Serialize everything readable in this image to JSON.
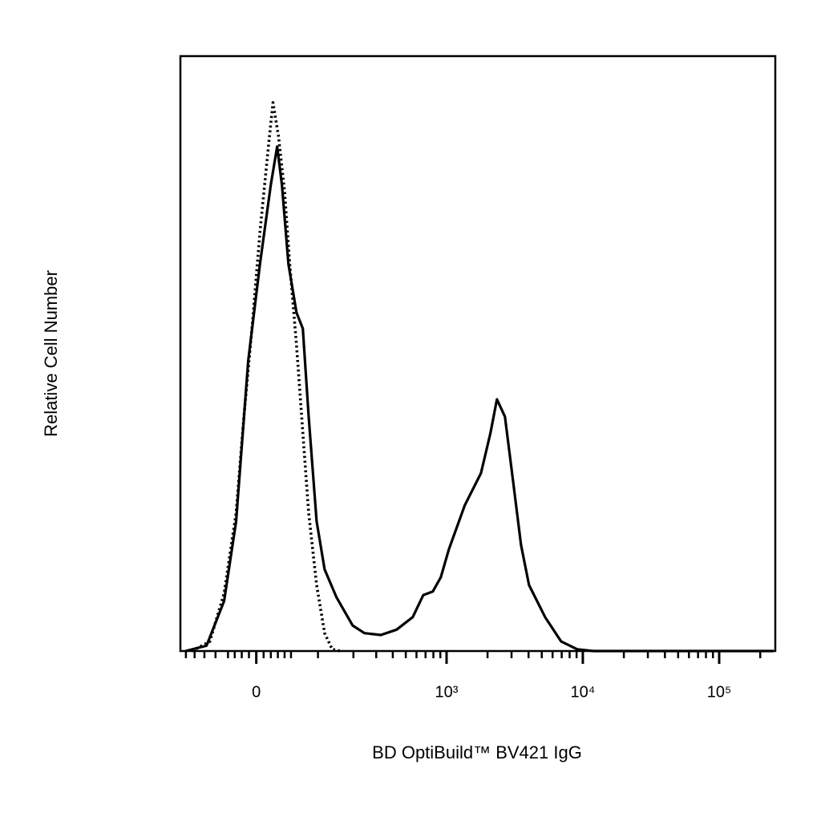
{
  "chart_data": {
    "type": "line",
    "xlabel": "BD OptiBuild™ BV421 IgG",
    "ylabel": "Relative Cell Number",
    "xscale": "biexponential",
    "xlim": [
      -134,
      258000
    ],
    "ylim": [
      0,
      100
    ],
    "xticks": [
      0,
      {
        "value": 1000,
        "label": "10³"
      },
      {
        "value": 10000,
        "label": "10⁴"
      },
      {
        "value": 100000,
        "label": "10⁵"
      }
    ],
    "xminorticks": [
      -120,
      -100,
      -80,
      -60,
      -40,
      -30,
      -20,
      -10,
      10,
      20,
      30,
      40,
      50,
      100,
      200,
      300,
      400,
      500,
      600,
      700,
      800,
      900,
      2000,
      3000,
      4000,
      5000,
      6000,
      7000,
      8000,
      9000,
      20000,
      30000,
      40000,
      50000,
      60000,
      70000,
      80000,
      90000,
      200000
    ],
    "series": [
      {
        "color": "#000000",
        "style": "solid",
        "x": [
          -121,
          -76,
          -46,
          -28,
          -11,
          5,
          20,
          29,
          36,
          46,
          59,
          70,
          81,
          97,
          115,
          146,
          197,
          244,
          325,
          427,
          563,
          673,
          792,
          907,
          1040,
          1362,
          1789,
          2104,
          2345,
          2684,
          3079,
          3522,
          4030,
          5287,
          6932,
          9092,
          11929,
          250000
        ],
        "values": [
          0,
          0.9,
          8.4,
          21.8,
          48.8,
          65.0,
          78.4,
          84.8,
          78.4,
          65.0,
          56.9,
          54.2,
          39.4,
          21.8,
          13.7,
          9.0,
          4.3,
          3.0,
          2.7,
          3.6,
          5.7,
          9.4,
          10.0,
          12.4,
          17.1,
          24.5,
          29.9,
          36.7,
          42.3,
          39.4,
          28.6,
          17.8,
          11.1,
          5.7,
          1.6,
          0.3,
          0,
          0
        ]
      },
      {
        "color": "#000000",
        "style": "dotted",
        "x": [
          -106,
          -70,
          -46,
          -28,
          -17,
          -5,
          5,
          17,
          23,
          31,
          40,
          48,
          59,
          70,
          81,
          97,
          115,
          134,
          156
        ],
        "values": [
          0,
          1.6,
          9.7,
          23.2,
          39.4,
          55.5,
          70.4,
          85.2,
          92.2,
          86.5,
          77.1,
          65.0,
          51.5,
          36.7,
          23.2,
          11.1,
          3.0,
          0.3,
          0
        ]
      }
    ]
  }
}
